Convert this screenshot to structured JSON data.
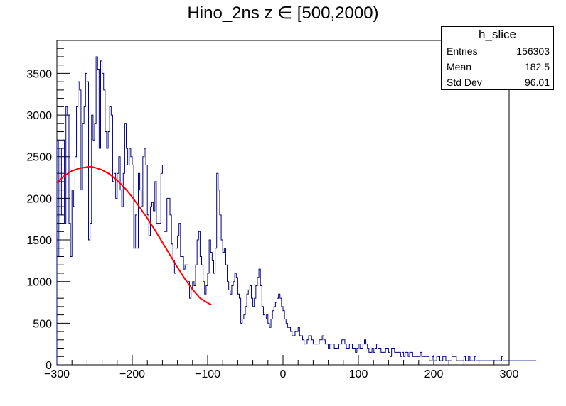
{
  "chart_data": {
    "type": "histogram",
    "title": "Hino_2ns z  ∈ [500,2000)",
    "xlabel": "",
    "ylabel": "",
    "xlim": [
      -300,
      300
    ],
    "ylim": [
      0,
      3900
    ],
    "xticks": [
      "−300",
      "−200",
      "−100",
      "0",
      "100",
      "200",
      "300"
    ],
    "yticks": [
      "0",
      "500",
      "1000",
      "1500",
      "2000",
      "2500",
      "3000",
      "3500"
    ],
    "bin_width": 2,
    "histogram_color": "#000080",
    "fit_color": "#ff0000",
    "histogram": {
      "x_start": -300,
      "values": [
        2700,
        1300,
        2600,
        1800,
        2700,
        1700,
        3100,
        3000,
        1700,
        1300,
        2100,
        1900,
        2500,
        3100,
        3400,
        3300,
        2100,
        2900,
        3100,
        3500,
        3400,
        1500,
        1700,
        3000,
        2700,
        2900,
        3700,
        3550,
        2600,
        3650,
        3500,
        3300,
        2800,
        2600,
        2800,
        3100,
        3000,
        2200,
        2300,
        2000,
        2300,
        2500,
        2100,
        1900,
        2300,
        2900,
        2600,
        2400,
        2600,
        2500,
        2400,
        1400,
        1800,
        1400,
        2300,
        2100,
        1900,
        2500,
        2600,
        2400,
        1800,
        1550,
        1900,
        1950,
        1850,
        2200,
        1700,
        1700,
        1700,
        2300,
        2400,
        1600,
        1600,
        2000,
        2000,
        1800,
        1450,
        1250,
        1100,
        1400,
        1550,
        1700,
        1300,
        1300,
        1150,
        1200,
        1200,
        1000,
        800,
        900,
        1000,
        950,
        1200,
        1500,
        1600,
        1300,
        1200,
        1000,
        850,
        950,
        1100,
        1500,
        1350,
        1250,
        1100,
        1400,
        2300,
        2100,
        1800,
        1500,
        1350,
        1400,
        1200,
        1000,
        900,
        850,
        950,
        1000,
        1100,
        1050,
        850,
        800,
        500,
        550,
        600,
        700,
        850,
        900,
        950,
        800,
        700,
        800,
        950,
        1050,
        1150,
        950,
        700,
        600,
        550,
        600,
        500,
        450,
        550,
        650,
        700,
        750,
        800,
        850,
        800,
        700,
        650,
        550,
        500,
        450,
        450,
        400,
        350,
        350,
        400,
        400,
        450,
        350,
        350,
        300,
        250,
        250,
        300,
        350,
        350,
        300,
        250,
        250,
        250,
        250,
        300,
        300,
        350,
        300,
        250,
        250,
        200,
        250,
        250,
        250,
        200,
        200,
        200,
        250,
        250,
        300,
        300,
        250,
        200,
        200,
        250,
        250,
        200,
        200,
        150,
        200,
        250,
        200,
        200,
        250,
        300,
        250,
        200,
        150,
        150,
        200,
        150,
        200,
        250,
        200,
        200,
        150,
        150,
        150,
        200,
        200,
        150,
        100,
        200,
        200,
        150,
        150,
        150,
        150,
        100,
        150,
        100,
        150,
        150,
        100,
        150,
        150,
        100,
        100,
        100,
        100,
        100,
        150,
        100,
        100,
        100,
        100,
        100,
        50,
        50,
        100,
        50,
        50,
        100,
        100,
        50,
        50,
        100,
        100,
        50,
        50,
        50,
        50,
        100,
        100,
        100,
        50,
        50,
        50,
        50,
        50,
        100,
        50,
        50,
        100,
        50,
        50,
        50,
        100,
        50,
        50,
        50,
        50,
        50,
        50,
        50,
        50,
        50,
        50,
        50,
        50,
        50,
        50,
        50,
        50,
        50,
        100,
        50,
        50,
        50,
        50,
        50,
        50,
        50,
        50,
        50,
        50,
        50,
        50,
        50,
        50,
        50,
        50,
        50,
        50,
        50,
        50,
        50,
        50
      ]
    },
    "fit": {
      "x": [
        -300,
        -290,
        -280,
        -270,
        -260,
        -255,
        -250,
        -240,
        -230,
        -220,
        -210,
        -200,
        -190,
        -180,
        -170,
        -160,
        -150,
        -140,
        -130,
        -120,
        -110,
        -100,
        -95
      ],
      "y": [
        2190,
        2270,
        2330,
        2360,
        2375,
        2380,
        2370,
        2340,
        2290,
        2215,
        2125,
        2015,
        1890,
        1760,
        1620,
        1470,
        1320,
        1170,
        1030,
        905,
        800,
        745,
        720
      ]
    }
  },
  "stats_box": {
    "name": "h_slice",
    "rows": [
      {
        "label": "Entries",
        "value": "156303"
      },
      {
        "label": "Mean",
        "value": "−182.5"
      },
      {
        "label": "Std Dev",
        "value": "96.01"
      }
    ]
  }
}
